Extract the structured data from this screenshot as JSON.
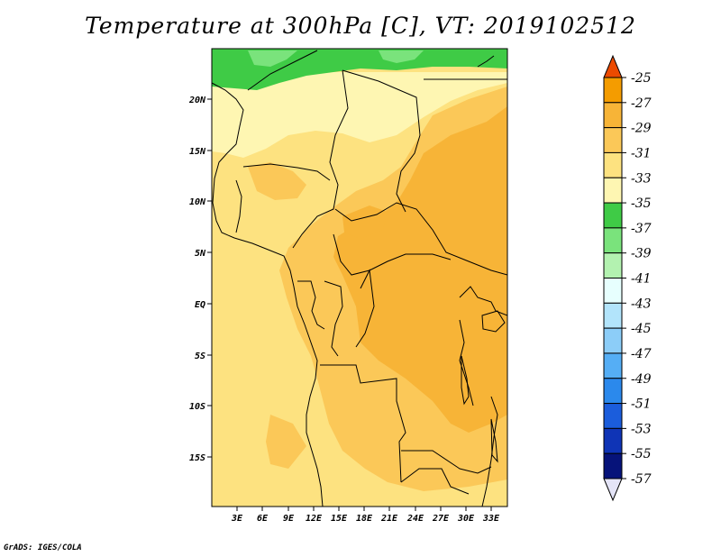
{
  "title": "Temperature at 300hPa [C], VT: 2019102512",
  "credit": "GrADS: IGES/COLA",
  "map": {
    "lon_labels": [
      "3E",
      "6E",
      "9E",
      "12E",
      "15E",
      "18E",
      "21E",
      "24E",
      "27E",
      "30E",
      "33E"
    ],
    "lat_labels": [
      "20N",
      "15N",
      "10N",
      "5N",
      "EQ",
      "5S",
      "10S",
      "15S"
    ],
    "colors": {
      "c35": "#fef6b2",
      "c33": "#fde280",
      "c31": "#fbc858",
      "c29": "#f7b437",
      "c37": "#3fcb46",
      "c39": "#7ae37c"
    }
  },
  "colorbar": {
    "labels": [
      "-25",
      "-27",
      "-29",
      "-31",
      "-33",
      "-35",
      "-37",
      "-39",
      "-41",
      "-43",
      "-45",
      "-47",
      "-49",
      "-51",
      "-53",
      "-55",
      "-57"
    ],
    "colors": [
      "#f07402",
      "#f49c00",
      "#f7b437",
      "#fbc858",
      "#fde280",
      "#fef6b2",
      "#3fcb46",
      "#7ae37c",
      "#b3f2b0",
      "#e7fffe",
      "#b2e4fb",
      "#8ccdf8",
      "#55aef5",
      "#2b89ec",
      "#1b5ddc",
      "#0f34b6",
      "#06137a"
    ],
    "top_color": "#ec4a00",
    "bottom_color": "#e4e4f7"
  }
}
